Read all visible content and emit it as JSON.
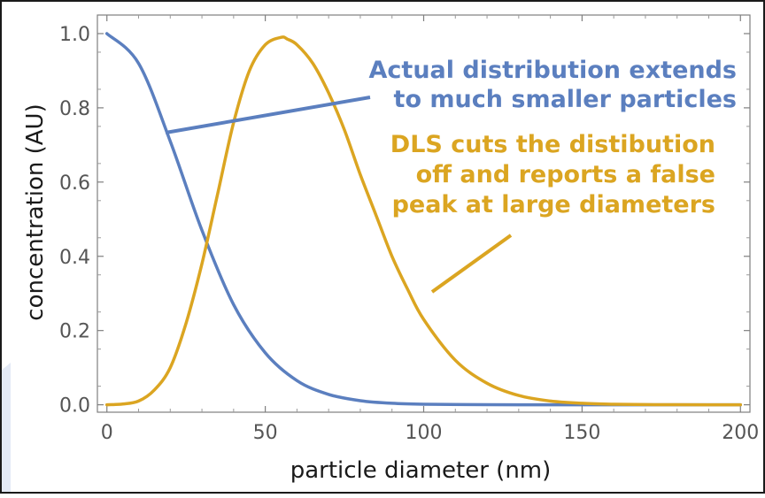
{
  "chart_data": {
    "type": "line",
    "xlabel": "particle diameter (nm)",
    "ylabel": "concentration (AU)",
    "xlim": [
      -3,
      203
    ],
    "ylim": [
      -0.02,
      1.05
    ],
    "x_ticks": [
      0,
      50,
      100,
      150,
      200
    ],
    "x_tick_labels": [
      "0",
      "50",
      "100",
      "150",
      "200"
    ],
    "y_ticks": [
      0.0,
      0.2,
      0.4,
      0.6,
      0.8,
      1.0
    ],
    "y_tick_labels": [
      "0.0",
      "0.2",
      "0.4",
      "0.6",
      "0.8",
      "1.0"
    ],
    "grid": false,
    "series": [
      {
        "color": "#5b7fbf",
        "x": [
          0,
          10,
          20,
          30,
          40,
          50,
          60,
          70,
          80,
          90,
          100,
          120,
          140,
          160,
          180,
          200
        ],
        "y": [
          1.0,
          0.92,
          0.71,
          0.47,
          0.27,
          0.14,
          0.065,
          0.028,
          0.011,
          0.004,
          0.0015,
          0.0002,
          0.0,
          0.0,
          0.0,
          0.0
        ]
      },
      {
        "color": "#dba521",
        "x": [
          0,
          5,
          10,
          15,
          20,
          25,
          30,
          35,
          40,
          45,
          50,
          55,
          57,
          60,
          65,
          70,
          75,
          80,
          85,
          90,
          95,
          100,
          110,
          120,
          130,
          140,
          150,
          160,
          170,
          180,
          200
        ],
        "y": [
          0.0,
          0.002,
          0.01,
          0.04,
          0.1,
          0.22,
          0.38,
          0.57,
          0.76,
          0.9,
          0.97,
          0.99,
          0.985,
          0.97,
          0.92,
          0.84,
          0.74,
          0.62,
          0.51,
          0.4,
          0.31,
          0.23,
          0.12,
          0.058,
          0.025,
          0.01,
          0.004,
          0.0015,
          0.0005,
          0.0002,
          0.0
        ]
      }
    ],
    "annotations": [
      {
        "lines": [
          "Actual distribution extends",
          "to much smaller particles"
        ],
        "color": "#5b7fbf"
      },
      {
        "lines": [
          "DLS cuts the distibution",
          "off and reports a false",
          "peak at large diameters"
        ],
        "color": "#dba521"
      }
    ]
  }
}
